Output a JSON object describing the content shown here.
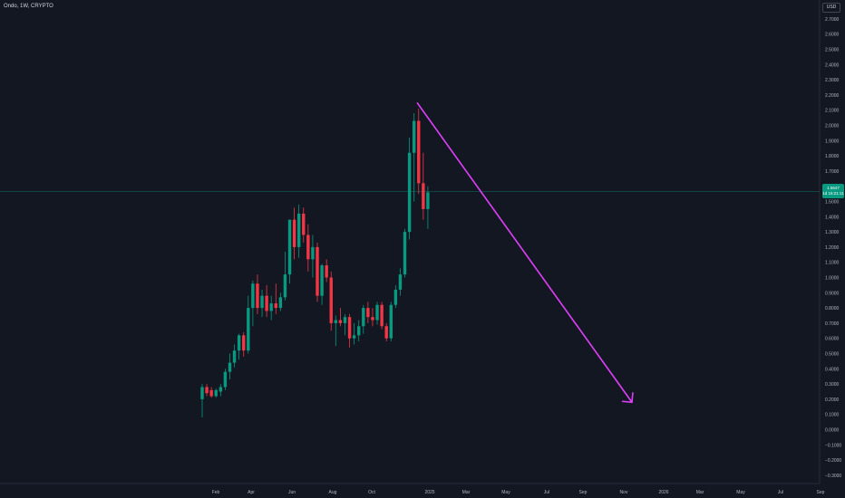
{
  "header": {
    "symbol_line": "Ondo, 1W, CRYPTO",
    "currency": "USD"
  },
  "price_tag": {
    "price": "1.5647",
    "countdown": "1d 15:21:11"
  },
  "colors": {
    "background": "#131722",
    "up": "#089981",
    "down": "#f23645",
    "arrow": "#e040fb",
    "axis_text": "#b2b5be",
    "last_price_line": "#089981"
  },
  "chart_data": {
    "type": "candlestick",
    "x_axis": {
      "tick_labels": [
        "Feb",
        "Apr",
        "Jun",
        "Aug",
        "Oct",
        "2025",
        "Mar",
        "May",
        "Jul",
        "Sep",
        "Nov",
        "2026",
        "Mar",
        "May",
        "Jul",
        "Sep"
      ]
    },
    "y_axis": {
      "range": [
        -0.32,
        2.8
      ],
      "tick_labels": [
        "2.7000",
        "2.6000",
        "2.5000",
        "2.4000",
        "2.3000",
        "2.2000",
        "2.1000",
        "2.0000",
        "1.9000",
        "1.8000",
        "1.7000",
        "1.6000",
        "1.5000",
        "1.4000",
        "1.3000",
        "1.2000",
        "1.1000",
        "1.0000",
        "0.9000",
        "0.8000",
        "0.7000",
        "0.6000",
        "0.5000",
        "0.4000",
        "0.3000",
        "0.2000",
        "0.1000",
        "0.0000",
        "−0.1000",
        "−0.2000",
        "−0.3000"
      ]
    },
    "candles": [
      {
        "o": 0.2,
        "h": 0.3,
        "l": 0.08,
        "c": 0.28
      },
      {
        "o": 0.28,
        "h": 0.3,
        "l": 0.22,
        "c": 0.24
      },
      {
        "o": 0.26,
        "h": 0.28,
        "l": 0.21,
        "c": 0.22
      },
      {
        "o": 0.22,
        "h": 0.27,
        "l": 0.21,
        "c": 0.26
      },
      {
        "o": 0.25,
        "h": 0.3,
        "l": 0.22,
        "c": 0.28
      },
      {
        "o": 0.28,
        "h": 0.4,
        "l": 0.26,
        "c": 0.38
      },
      {
        "o": 0.38,
        "h": 0.5,
        "l": 0.33,
        "c": 0.44
      },
      {
        "o": 0.44,
        "h": 0.56,
        "l": 0.41,
        "c": 0.52
      },
      {
        "o": 0.52,
        "h": 0.63,
        "l": 0.46,
        "c": 0.62
      },
      {
        "o": 0.62,
        "h": 0.64,
        "l": 0.48,
        "c": 0.52
      },
      {
        "o": 0.52,
        "h": 0.88,
        "l": 0.5,
        "c": 0.8
      },
      {
        "o": 0.8,
        "h": 0.98,
        "l": 0.68,
        "c": 0.96
      },
      {
        "o": 0.96,
        "h": 1.02,
        "l": 0.76,
        "c": 0.8
      },
      {
        "o": 0.8,
        "h": 0.92,
        "l": 0.74,
        "c": 0.88
      },
      {
        "o": 0.88,
        "h": 0.95,
        "l": 0.74,
        "c": 0.78
      },
      {
        "o": 0.78,
        "h": 0.88,
        "l": 0.72,
        "c": 0.83
      },
      {
        "o": 0.83,
        "h": 0.96,
        "l": 0.76,
        "c": 0.8
      },
      {
        "o": 0.8,
        "h": 0.9,
        "l": 0.78,
        "c": 0.87
      },
      {
        "o": 0.87,
        "h": 1.17,
        "l": 0.85,
        "c": 1.02
      },
      {
        "o": 1.02,
        "h": 1.38,
        "l": 0.96,
        "c": 1.38
      },
      {
        "o": 1.38,
        "h": 1.46,
        "l": 1.12,
        "c": 1.2
      },
      {
        "o": 1.2,
        "h": 1.48,
        "l": 1.13,
        "c": 1.42
      },
      {
        "o": 1.42,
        "h": 1.46,
        "l": 1.23,
        "c": 1.28
      },
      {
        "o": 1.28,
        "h": 1.35,
        "l": 1.04,
        "c": 1.12
      },
      {
        "o": 1.12,
        "h": 1.28,
        "l": 1.0,
        "c": 1.2
      },
      {
        "o": 1.2,
        "h": 1.23,
        "l": 0.84,
        "c": 0.88
      },
      {
        "o": 0.88,
        "h": 1.09,
        "l": 0.82,
        "c": 1.08
      },
      {
        "o": 1.08,
        "h": 1.12,
        "l": 0.97,
        "c": 1.0
      },
      {
        "o": 1.0,
        "h": 1.04,
        "l": 0.65,
        "c": 0.7
      },
      {
        "o": 0.7,
        "h": 0.75,
        "l": 0.55,
        "c": 0.72
      },
      {
        "o": 0.72,
        "h": 0.8,
        "l": 0.68,
        "c": 0.7
      },
      {
        "o": 0.7,
        "h": 0.76,
        "l": 0.62,
        "c": 0.74
      },
      {
        "o": 0.74,
        "h": 0.76,
        "l": 0.54,
        "c": 0.6
      },
      {
        "o": 0.6,
        "h": 0.7,
        "l": 0.56,
        "c": 0.62
      },
      {
        "o": 0.62,
        "h": 0.72,
        "l": 0.58,
        "c": 0.68
      },
      {
        "o": 0.68,
        "h": 0.82,
        "l": 0.63,
        "c": 0.8
      },
      {
        "o": 0.8,
        "h": 0.84,
        "l": 0.7,
        "c": 0.74
      },
      {
        "o": 0.74,
        "h": 0.8,
        "l": 0.68,
        "c": 0.72
      },
      {
        "o": 0.72,
        "h": 0.84,
        "l": 0.69,
        "c": 0.82
      },
      {
        "o": 0.82,
        "h": 0.84,
        "l": 0.66,
        "c": 0.68
      },
      {
        "o": 0.68,
        "h": 0.7,
        "l": 0.58,
        "c": 0.6
      },
      {
        "o": 0.6,
        "h": 0.84,
        "l": 0.58,
        "c": 0.82
      },
      {
        "o": 0.82,
        "h": 0.95,
        "l": 0.8,
        "c": 0.92
      },
      {
        "o": 0.92,
        "h": 1.06,
        "l": 0.88,
        "c": 1.02
      },
      {
        "o": 1.02,
        "h": 1.32,
        "l": 1.0,
        "c": 1.3
      },
      {
        "o": 1.3,
        "h": 1.92,
        "l": 1.25,
        "c": 1.82
      },
      {
        "o": 1.82,
        "h": 2.08,
        "l": 1.5,
        "c": 2.03
      },
      {
        "o": 2.03,
        "h": 2.11,
        "l": 1.55,
        "c": 1.62
      },
      {
        "o": 1.62,
        "h": 1.82,
        "l": 1.38,
        "c": 1.45
      },
      {
        "o": 1.45,
        "h": 1.6,
        "l": 1.32,
        "c": 1.56
      }
    ],
    "last_price": 1.5647,
    "annotation_arrow": {
      "from_price": 2.15,
      "to_price": 0.18,
      "color": "#e040fb"
    },
    "grid": false
  }
}
